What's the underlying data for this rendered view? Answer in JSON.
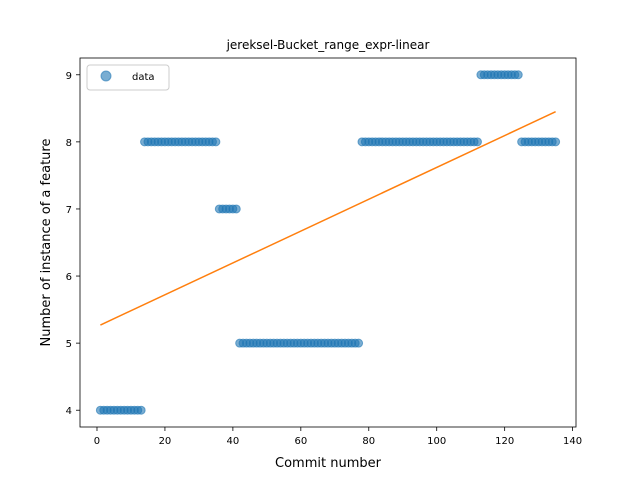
{
  "chart_data": {
    "type": "scatter",
    "title": "jereksel-Bucket_range_expr-linear",
    "xlabel": "Commit number",
    "ylabel": "Number of instance of a feature",
    "xlim": [
      -5,
      141
    ],
    "ylim": [
      3.75,
      9.25
    ],
    "xticks": [
      0,
      20,
      40,
      60,
      80,
      100,
      120,
      140
    ],
    "yticks": [
      4,
      5,
      6,
      7,
      8,
      9
    ],
    "legend": {
      "entries": [
        "data"
      ],
      "position": "top-left"
    },
    "grid": false,
    "colors": {
      "points": "#1f77b4",
      "fit": "#ff7f0e"
    },
    "series": [
      {
        "name": "data",
        "kind": "scatter",
        "runs": [
          {
            "x_start": 1,
            "x_end": 13,
            "y": 4
          },
          {
            "x_start": 14,
            "x_end": 35,
            "y": 8
          },
          {
            "x_start": 36,
            "x_end": 41,
            "y": 7
          },
          {
            "x_start": 42,
            "x_end": 77,
            "y": 5
          },
          {
            "x_start": 78,
            "x_end": 112,
            "y": 8
          },
          {
            "x_start": 113,
            "x_end": 124,
            "y": 9
          },
          {
            "x_start": 125,
            "x_end": 135,
            "y": 8
          }
        ]
      },
      {
        "kind": "line",
        "x": [
          1,
          135
        ],
        "y": [
          5.27,
          8.45
        ]
      }
    ]
  }
}
